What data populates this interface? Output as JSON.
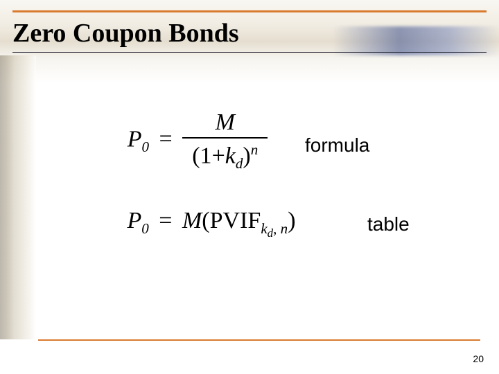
{
  "slide": {
    "title": "Zero Coupon Bonds",
    "title_fontsize": 38,
    "hr_color": "#d97a2f",
    "labels": {
      "formula": "formula",
      "table": "table",
      "label_fontsize": 28
    },
    "formula1": {
      "lhs_var": "P",
      "lhs_sub": "0",
      "eq": "=",
      "numerator": "M",
      "den_open": "(1",
      "den_plus": "+",
      "den_var": "k",
      "den_sub": "d",
      "den_close": ")",
      "exp": "n",
      "fontsize": 34
    },
    "formula2": {
      "lhs_var": "P",
      "lhs_sub": "0",
      "eq": "=",
      "coef": "M",
      "open": "(",
      "pvif": "PVIF",
      "sub1_var": "k",
      "sub1_sub": "d",
      "sub_comma": ",",
      "sub2": "n",
      "close": ")",
      "fontsize": 34
    },
    "page_number": "20",
    "page_number_fontsize": 14,
    "background_color": "#ffffff"
  }
}
